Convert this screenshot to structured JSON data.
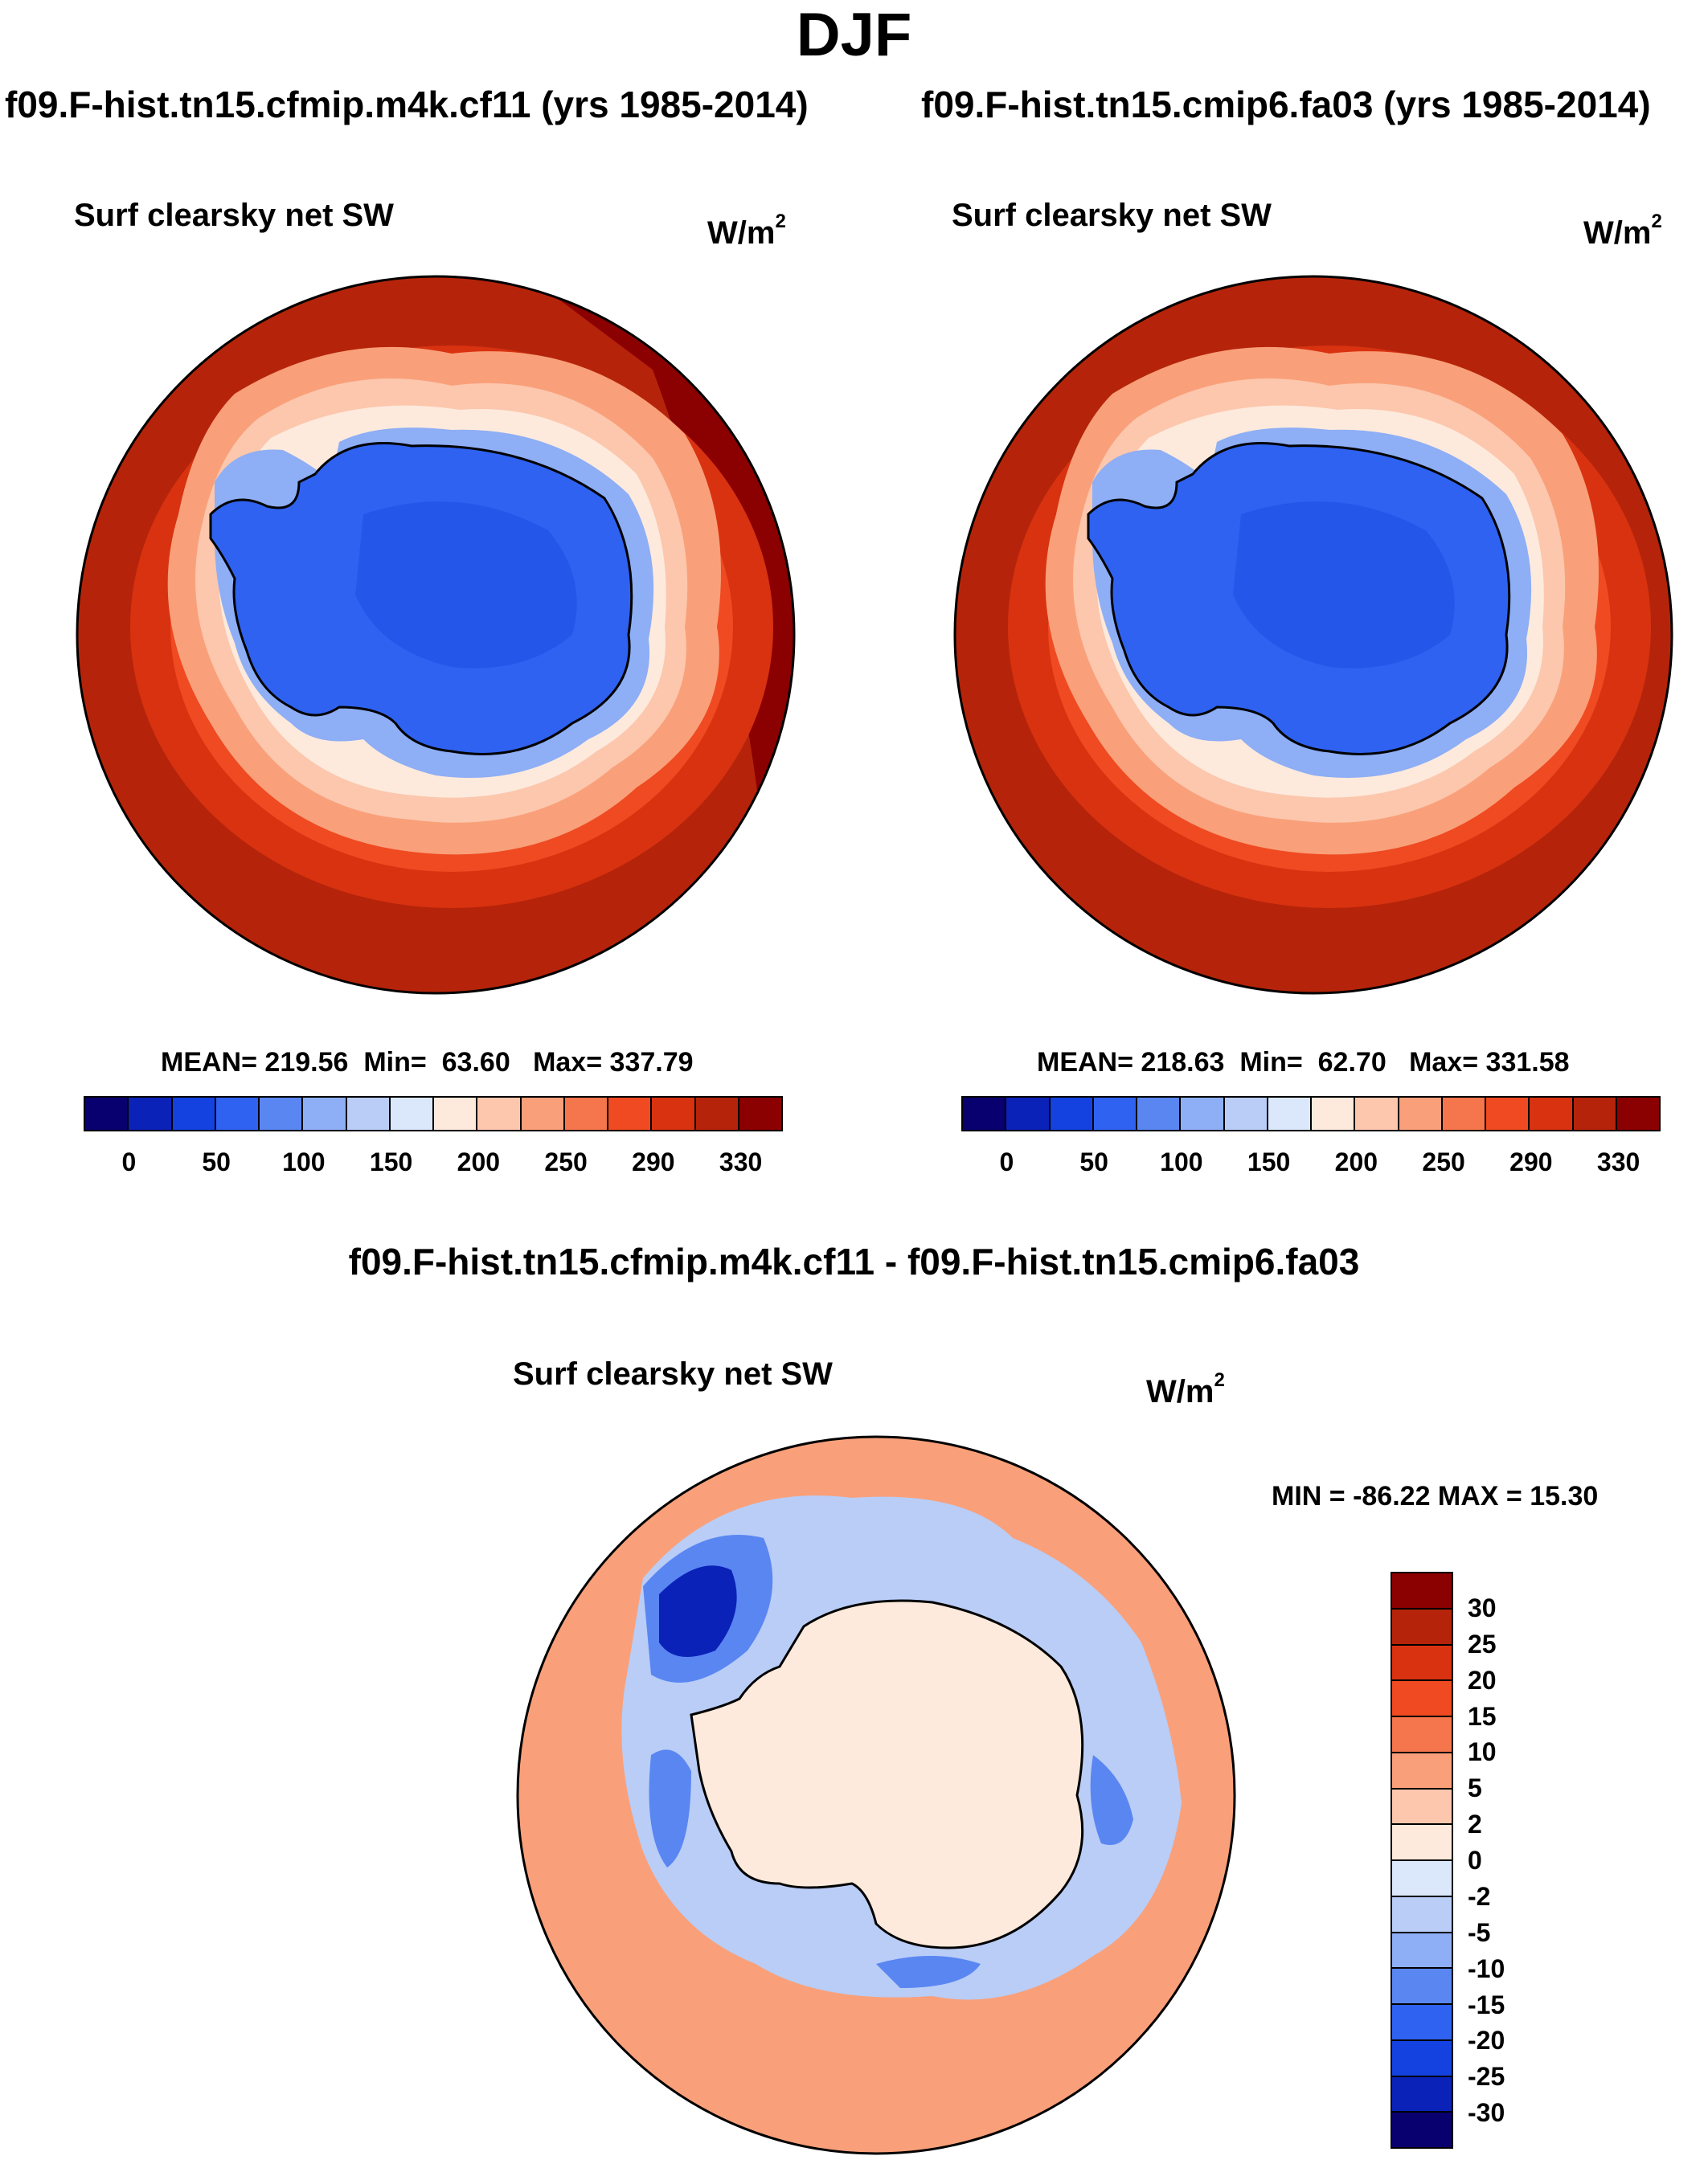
{
  "title": "DJF",
  "panels": [
    {
      "case_title": "f09.F-hist.tn15.cfmip.m4k.cf11 (yrs 1985-2014)",
      "var_title": "Surf clearsky net SW",
      "units": "W/m",
      "units_sup": "2",
      "stats": {
        "mean_label": "MEAN=",
        "mean": "219.56",
        "min_label": "Min=",
        "min": "63.60",
        "max_label": "Max=",
        "max": "337.79"
      }
    },
    {
      "case_title": "f09.F-hist.tn15.cmip6.fa03 (yrs 1985-2014)",
      "var_title": "Surf clearsky net SW",
      "units": "W/m",
      "units_sup": "2",
      "stats": {
        "mean_label": "MEAN=",
        "mean": "218.63",
        "min_label": "Min=",
        "min": "62.70",
        "max_label": "Max=",
        "max": "331.58"
      }
    }
  ],
  "abs_colorbar": {
    "colors": [
      "#08006e",
      "#0b22b8",
      "#1442e0",
      "#2f62f0",
      "#5a86f2",
      "#8eaef5",
      "#b9cdf7",
      "#dbe8fb",
      "#fdeadc",
      "#fcc7ad",
      "#f9a07a",
      "#f5754c",
      "#ef4a21",
      "#d83210",
      "#b5240a",
      "#8b0000"
    ],
    "ticks": [
      "0",
      "50",
      "100",
      "150",
      "200",
      "250",
      "290",
      "330"
    ]
  },
  "diff": {
    "title": "f09.F-hist.tn15.cfmip.m4k.cf11 - f09.F-hist.tn15.cmip6.fa03",
    "var_title": "Surf clearsky net SW",
    "units": "W/m",
    "units_sup": "2",
    "minmax": "MIN = -86.22 MAX =  15.30",
    "colorbar": {
      "colors": [
        "#8b0000",
        "#b5240a",
        "#d83210",
        "#ef4a21",
        "#f5754c",
        "#f9a07a",
        "#fcc7ad",
        "#fdeadc",
        "#dbe8fb",
        "#b9cdf7",
        "#8eaef5",
        "#5a86f2",
        "#2f62f0",
        "#1442e0",
        "#0b22b8",
        "#08006e"
      ],
      "ticks": [
        "30",
        "25",
        "20",
        "15",
        "10",
        "5",
        "2",
        "0",
        "-2",
        "-5",
        "-10",
        "-15",
        "-20",
        "-25",
        "-30"
      ]
    }
  },
  "field_colors": {
    "ocean_far": "#b5240a",
    "ocean_edge": "#8b0000",
    "ocean_mid": "#d83210",
    "ocean_near": "#ef4a21",
    "seaice_1": "#f9a07a",
    "seaice_2": "#fcc7ad",
    "seaice_3": "#fdeadc",
    "ice_edge": "#8eaef5",
    "continent": "#2f62f0",
    "continent_dark": "#1442e0",
    "diff_ocean": "#f9a07a",
    "diff_land": "#fdeadc",
    "diff_blue1": "#b9cdf7",
    "diff_blue2": "#5a86f2",
    "diff_blue3": "#0b22b8"
  }
}
